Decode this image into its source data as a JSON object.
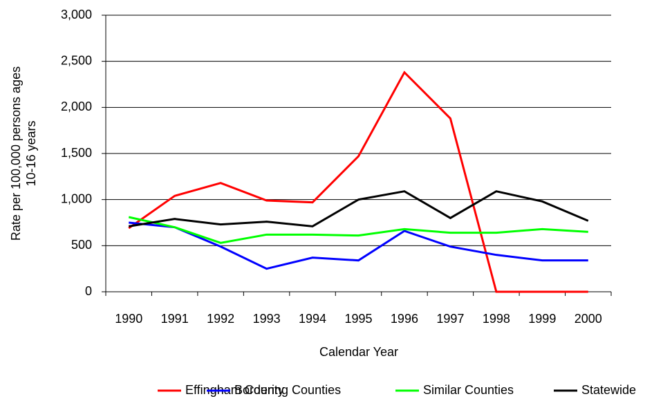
{
  "chart_data": {
    "type": "line",
    "xlabel": "Calendar Year",
    "ylabel": [
      "Rate per 100,000 persons ages",
      "10-16 years"
    ],
    "categories": [
      "1990",
      "1991",
      "1992",
      "1993",
      "1994",
      "1995",
      "1996",
      "1997",
      "1998",
      "1999",
      "2000"
    ],
    "series": [
      {
        "name": "Effingham County",
        "color": "#ff0000",
        "values": [
          690,
          1040,
          1180,
          990,
          970,
          1470,
          2380,
          1880,
          0,
          0,
          0
        ]
      },
      {
        "name": "Bordering Counties",
        "color": "#0000ff",
        "values": [
          750,
          700,
          490,
          250,
          370,
          340,
          660,
          490,
          400,
          340,
          340
        ]
      },
      {
        "name": "Similar Counties",
        "color": "#00ff00",
        "values": [
          810,
          700,
          530,
          620,
          620,
          610,
          680,
          640,
          640,
          680,
          650
        ]
      },
      {
        "name": "Statewide",
        "color": "#000000",
        "values": [
          710,
          790,
          730,
          760,
          710,
          1000,
          1090,
          800,
          1090,
          980,
          770
        ]
      }
    ],
    "ylim": [
      0,
      3000
    ],
    "yticks": [
      0,
      500,
      {
        "value": 1000,
        "label": "1,000"
      },
      {
        "value": 1500,
        "label": "1,500"
      },
      {
        "value": 2000,
        "label": "2,000"
      },
      {
        "value": 2500,
        "label": "2,500"
      },
      {
        "value": 3000,
        "label": "3,000"
      }
    ],
    "grid": true,
    "legend": "bottom"
  }
}
